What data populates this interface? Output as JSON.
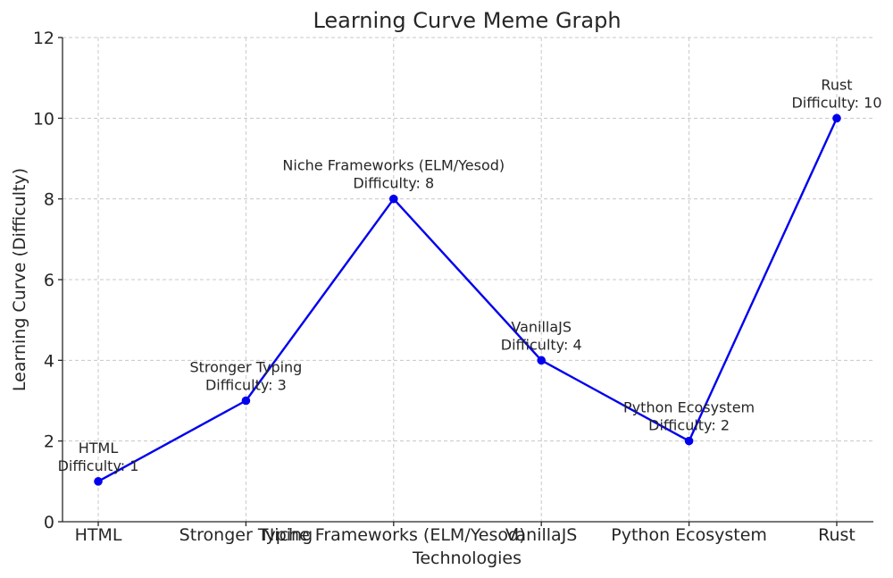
{
  "chart_data": {
    "type": "line",
    "title": "Learning Curve Meme Graph",
    "xlabel": "Technologies",
    "ylabel": "Learning Curve (Difficulty)",
    "categories": [
      "HTML",
      "Stronger Typing",
      "Niche Frameworks (ELM/Yesod)",
      "VanillaJS",
      "Python Ecosystem",
      "Rust"
    ],
    "series": [
      {
        "values": [
          1,
          3,
          8,
          4,
          2,
          10
        ],
        "color": "#0000ee"
      }
    ],
    "annotations": [
      {
        "name": "HTML",
        "detail": "Difficulty: 1"
      },
      {
        "name": "Stronger Typing",
        "detail": "Difficulty: 3"
      },
      {
        "name": "Niche Frameworks (ELM/Yesod)",
        "detail": "Difficulty: 8"
      },
      {
        "name": "VanillaJS",
        "detail": "Difficulty: 4"
      },
      {
        "name": "Python Ecosystem",
        "detail": "Difficulty: 2"
      },
      {
        "name": "Rust",
        "detail": "Difficulty: 10"
      }
    ],
    "ylim": [
      0,
      12
    ],
    "yticks": [
      0,
      2,
      4,
      6,
      8,
      10,
      12
    ],
    "grid": true,
    "legend": "none"
  }
}
